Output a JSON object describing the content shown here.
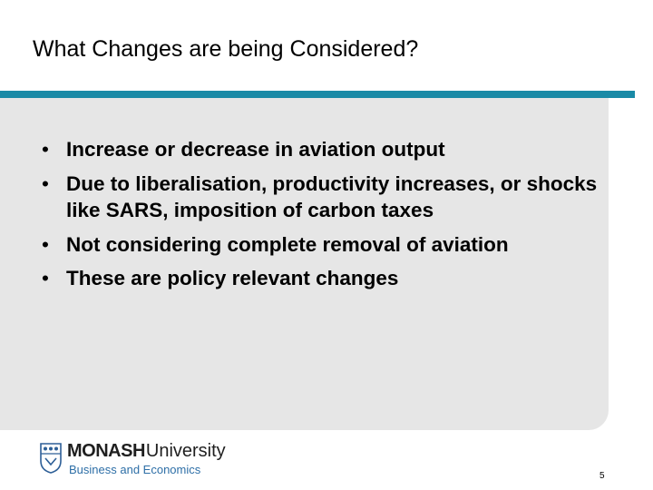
{
  "slide": {
    "title": "What Changes are being Considered?",
    "bullets": [
      {
        "mark": "•",
        "text": "Increase or decrease in aviation output"
      },
      {
        "mark": "•",
        "text": "Due to liberalisation, productivity increases, or shocks like SARS, imposition of carbon taxes"
      },
      {
        "mark": "•",
        "text": "Not considering complete removal of aviation"
      },
      {
        "mark": "•",
        "text": "These are policy relevant changes"
      }
    ],
    "page_number": "5"
  },
  "footer": {
    "logo_name": "MONASH",
    "logo_name_rest": "University",
    "logo_subtitle": "Business and Economics",
    "crest_icon": "monash-crest-icon"
  },
  "colors": {
    "accent": "#1a8aa6",
    "panel": "#e6e6e6",
    "logo_subtitle": "#2e6fa7",
    "crest": "#2e5f97"
  }
}
